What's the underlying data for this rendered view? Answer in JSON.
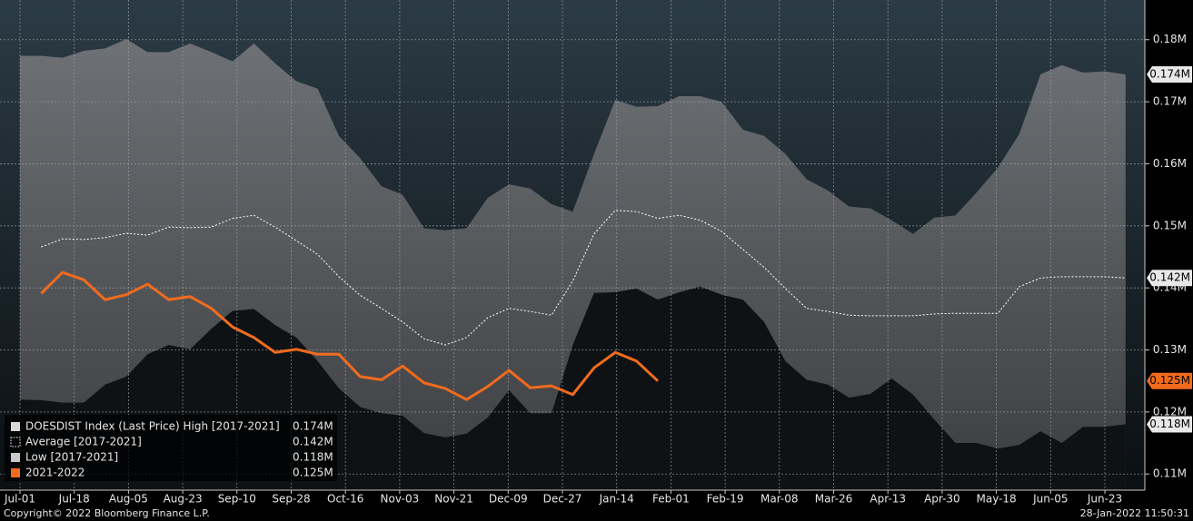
{
  "chart_data": {
    "type": "line",
    "xtick_labels": [
      "Jul-01",
      "Jul-18",
      "Aug-05",
      "Aug-23",
      "Sep-10",
      "Sep-28",
      "Oct-16",
      "Nov-03",
      "Nov-21",
      "Dec-09",
      "Dec-27",
      "Jan-14",
      "Feb-01",
      "Feb-19",
      "Mar-08",
      "Mar-26",
      "Apr-13",
      "Apr-30",
      "May-18",
      "Jun-05",
      "Jun-23"
    ],
    "ylim": [
      0.1074,
      0.1864
    ],
    "yticks": [
      {
        "value": 0.11,
        "label": "0.11M"
      },
      {
        "value": 0.12,
        "label": "0.12M"
      },
      {
        "value": 0.13,
        "label": "0.13M"
      },
      {
        "value": 0.14,
        "label": "0.14M"
      },
      {
        "value": 0.15,
        "label": "0.15M"
      },
      {
        "value": 0.16,
        "label": "0.16M"
      },
      {
        "value": 0.17,
        "label": "0.17M"
      },
      {
        "value": 0.18,
        "label": "0.18M"
      }
    ],
    "grid": true,
    "legend": "bottom-left",
    "series": [
      {
        "name": "DOESDIST Index (Last Price) High [2017-2021]",
        "color": "#d9d9d9",
        "end_label": "0.174M",
        "values": [
          0.1774,
          0.1774,
          0.1771,
          0.1782,
          0.1786,
          0.1801,
          0.178,
          0.178,
          0.1794,
          0.178,
          0.1765,
          0.1794,
          0.1762,
          0.1733,
          0.1721,
          0.1645,
          0.1609,
          0.1564,
          0.155,
          0.1496,
          0.1493,
          0.1496,
          0.1545,
          0.1567,
          0.156,
          0.1535,
          0.1523,
          0.1616,
          0.1703,
          0.1692,
          0.1693,
          0.1709,
          0.1709,
          0.17,
          0.1655,
          0.1645,
          0.1616,
          0.1575,
          0.1557,
          0.1531,
          0.1528,
          0.1509,
          0.1487,
          0.1513,
          0.1517,
          0.1554,
          0.1594,
          0.1648,
          0.1744,
          0.1759,
          0.1747,
          0.1749,
          0.1744
        ]
      },
      {
        "name": "Average  [2017-2021]",
        "color": "#ffffff",
        "dash": true,
        "end_label": "0.142M",
        "values": [
          null,
          0.1466,
          0.1479,
          0.1478,
          0.1481,
          0.1488,
          0.1485,
          0.1498,
          0.1497,
          0.1498,
          0.1512,
          0.1517,
          0.1498,
          0.1476,
          0.1454,
          0.1418,
          0.1388,
          0.1367,
          0.1345,
          0.1318,
          0.1308,
          0.132,
          0.1352,
          0.1367,
          0.1362,
          0.1356,
          0.1411,
          0.1487,
          0.1525,
          0.1523,
          0.1512,
          0.1517,
          0.1509,
          0.1491,
          0.1462,
          0.1433,
          0.1399,
          0.1367,
          0.1362,
          0.1356,
          0.1355,
          0.1355,
          0.1355,
          0.1358,
          0.1359,
          0.1359,
          0.1359,
          0.1402,
          0.1416,
          0.1418,
          0.1418,
          0.1418,
          0.1416
        ]
      },
      {
        "name": "Low  [2017-2021]",
        "color": "#c8c8c8",
        "end_label": "0.118M",
        "values": [
          0.122,
          0.1219,
          0.1215,
          0.1215,
          0.1244,
          0.1257,
          0.1293,
          0.1308,
          0.1301,
          0.1334,
          0.1363,
          0.1366,
          0.134,
          0.132,
          0.1282,
          0.1238,
          0.1208,
          0.1198,
          0.1194,
          0.1166,
          0.1159,
          0.1165,
          0.1191,
          0.1235,
          0.1198,
          0.1198,
          0.1308,
          0.1392,
          0.1393,
          0.1399,
          0.1381,
          0.1393,
          0.1402,
          0.1389,
          0.1381,
          0.1345,
          0.1282,
          0.1252,
          0.1244,
          0.1223,
          0.1229,
          0.1254,
          0.1228,
          0.1188,
          0.115,
          0.115,
          0.1141,
          0.1147,
          0.1169,
          0.115,
          0.1176,
          0.1176,
          0.118
        ]
      },
      {
        "name": "2021-2022",
        "color": "#f26b1d",
        "end_label": "0.125M",
        "values": [
          null,
          0.1391,
          0.1425,
          0.1413,
          0.1381,
          0.1389,
          0.1406,
          0.1381,
          0.1386,
          0.1367,
          0.1337,
          0.132,
          0.1296,
          0.1301,
          0.1293,
          0.1293,
          0.1257,
          0.1252,
          0.1274,
          0.1247,
          0.1238,
          0.122,
          0.1241,
          0.1267,
          0.1239,
          0.1242,
          0.1228,
          0.1271,
          0.1296,
          0.1282,
          0.125,
          null,
          null,
          null,
          null,
          null,
          null,
          null,
          null,
          null,
          null,
          null,
          null,
          null,
          null,
          null,
          null,
          null,
          null,
          null,
          null,
          null,
          null
        ]
      }
    ],
    "copyright": "Copyright© 2022 Bloomberg Finance L.P.",
    "timestamp": "28-Jan-2022 11:50:31"
  }
}
